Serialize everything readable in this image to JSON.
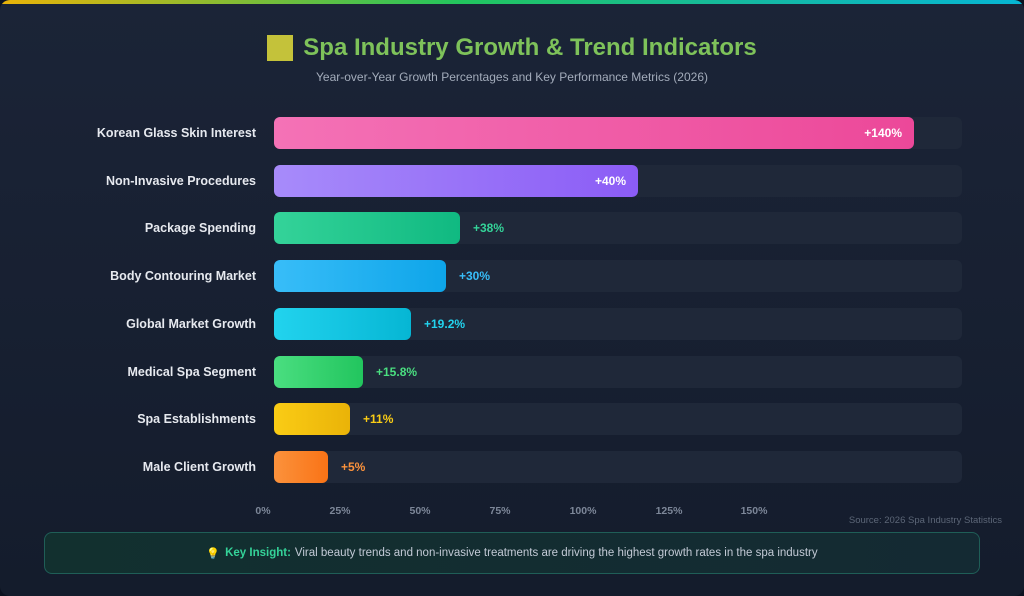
{
  "header": {
    "title": "Spa Industry Growth & Trend Indicators",
    "subtitle": "Year-over-Year Growth Percentages and Key Performance Metrics (2026)"
  },
  "chart_data": {
    "type": "bar",
    "orientation": "horizontal",
    "title": "Spa Industry Growth & Trend Indicators",
    "subtitle": "Year-over-Year Growth Percentages and Key Performance Metrics (2026)",
    "xlim": [
      0,
      150
    ],
    "ticks": [
      "0%",
      "25%",
      "50%",
      "75%",
      "100%",
      "125%",
      "150%"
    ],
    "categories": [
      "Korean Glass Skin Interest",
      "Non-Invasive Procedures",
      "Package Spending",
      "Body Contouring Market",
      "Global Market Growth",
      "Medical Spa Segment",
      "Spa Establishments",
      "Male Client Growth"
    ],
    "values": [
      140,
      40,
      38,
      30,
      19.2,
      15.8,
      11,
      5
    ],
    "labels": [
      "+140%",
      "+40%",
      "+38%",
      "+30%",
      "+19.2%",
      "+15.8%",
      "+11%",
      "+5%"
    ],
    "colors": [
      [
        "#f472b6",
        "#ec4899"
      ],
      [
        "#a78bfa",
        "#8b5cf6"
      ],
      [
        "#34d399",
        "#10b981"
      ],
      [
        "#38bdf8",
        "#0ea5e9"
      ],
      [
        "#22d3ee",
        "#06b6d4"
      ],
      [
        "#4ade80",
        "#22c55e"
      ],
      [
        "#facc15",
        "#eab308"
      ],
      [
        "#fb923c",
        "#f97316"
      ]
    ],
    "label_colors": [
      "#ffffff",
      "#ffffff",
      "#34d399",
      "#38bdf8",
      "#22d3ee",
      "#4ade80",
      "#facc15",
      "#fb923c"
    ],
    "grid": false
  },
  "source": "Source: 2026 Spa Industry Statistics",
  "insight": {
    "icon": "lightbulb-icon",
    "key": "Key Insight:",
    "text": "Viral beauty trends and non-invasive treatments are driving the highest growth rates in the spa industry"
  }
}
